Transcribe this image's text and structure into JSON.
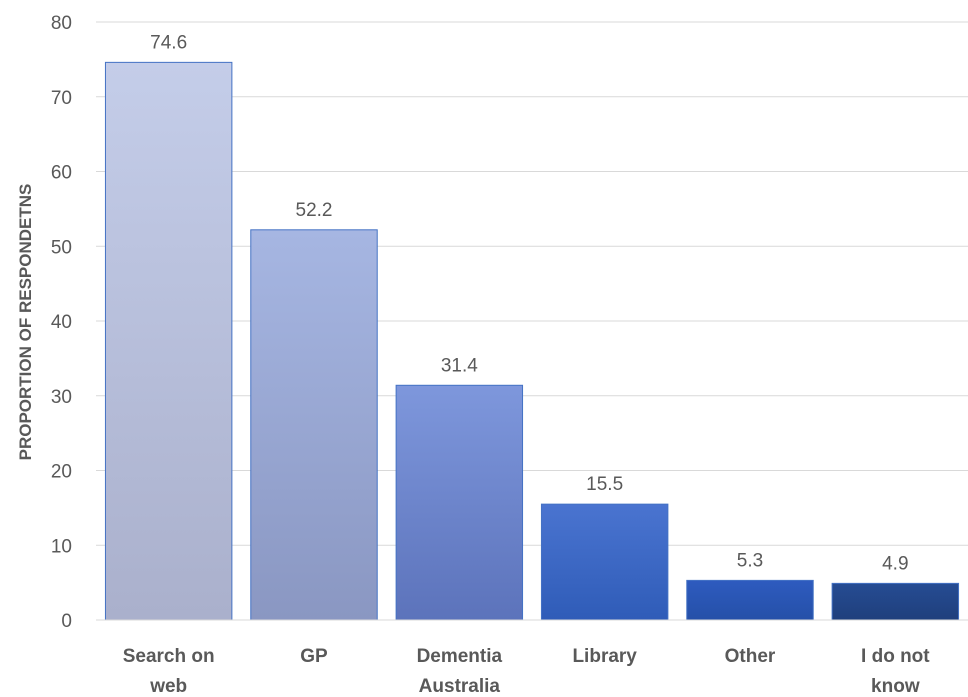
{
  "chart_data": {
    "type": "bar",
    "categories": [
      [
        "Search on",
        "web"
      ],
      [
        "GP"
      ],
      [
        "Dementia",
        "Australia"
      ],
      [
        "Library"
      ],
      [
        "Other"
      ],
      [
        "I do not",
        "know"
      ]
    ],
    "values": [
      74.6,
      52.2,
      31.4,
      15.5,
      5.3,
      4.9
    ],
    "data_labels": [
      "74.6",
      "52.2",
      "31.4",
      "15.5",
      "5.3",
      "4.9"
    ],
    "title": "",
    "xlabel": "",
    "ylabel": "PROPORTION OF RESPONDETNS",
    "ylim": [
      0,
      80
    ],
    "yticks": [
      0,
      10,
      20,
      30,
      40,
      50,
      60,
      70,
      80
    ],
    "grid": true,
    "legend": "none",
    "bar_colors_top": [
      "#c4cde9",
      "#a6b6e2",
      "#7e97dc",
      "#4a74d0",
      "#2e5bbf",
      "#264c93"
    ],
    "bar_colors_bottom": [
      "#aab0cc",
      "#8a97c2",
      "#5c73bb",
      "#2f5cb8",
      "#2550a8",
      "#1f3f7c"
    ],
    "bar_stroke": "#4472c4"
  }
}
